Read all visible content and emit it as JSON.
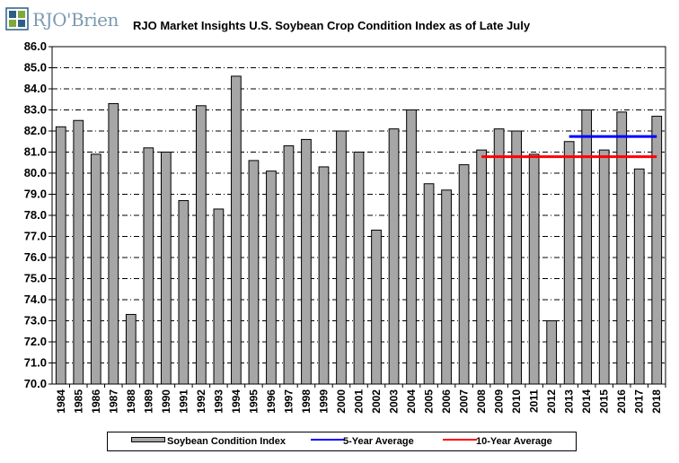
{
  "logo": {
    "text": "RJO'Brien"
  },
  "colors": {
    "bars": "#a6a6a6",
    "bar_stroke": "#000000",
    "five_year": "#0000ff",
    "ten_year": "#ff0000",
    "grid": "#000000"
  },
  "chart_data": {
    "type": "bar",
    "title": "RJO Market Insights U.S. Soybean Crop Condition Index as of Late July",
    "xlabel": "",
    "ylabel": "",
    "ylim": [
      70.0,
      86.0
    ],
    "ytick_step": 1.0,
    "yticks": [
      "70.0",
      "71.0",
      "72.0",
      "73.0",
      "74.0",
      "75.0",
      "76.0",
      "77.0",
      "78.0",
      "79.0",
      "80.0",
      "81.0",
      "82.0",
      "83.0",
      "84.0",
      "85.0",
      "86.0"
    ],
    "grid": "horizontal dash-dot",
    "categories": [
      "1984",
      "1985",
      "1986",
      "1987",
      "1988",
      "1989",
      "1990",
      "1991",
      "1992",
      "1993",
      "1994",
      "1995",
      "1996",
      "1997",
      "1998",
      "1999",
      "2000",
      "2001",
      "2002",
      "2003",
      "2004",
      "2005",
      "2006",
      "2007",
      "2008",
      "2009",
      "2010",
      "2011",
      "2012",
      "2013",
      "2014",
      "2015",
      "2016",
      "2017",
      "2018"
    ],
    "series": [
      {
        "name": "Soybean Condition Index",
        "kind": "bar",
        "values": [
          82.2,
          82.5,
          80.9,
          83.3,
          73.3,
          81.2,
          81.0,
          78.7,
          83.2,
          78.3,
          84.6,
          80.6,
          80.1,
          81.3,
          81.6,
          80.3,
          82.0,
          81.0,
          77.3,
          82.1,
          83.0,
          79.5,
          79.2,
          80.4,
          81.1,
          82.1,
          82.0,
          80.9,
          73.0,
          81.5,
          83.0,
          81.1,
          82.9,
          80.2,
          82.7
        ]
      },
      {
        "name": "5-Year Average",
        "kind": "line",
        "x": [
          "2013",
          "2018"
        ],
        "values": [
          81.74,
          81.74
        ]
      },
      {
        "name": "10-Year Average",
        "kind": "line",
        "x": [
          "2008",
          "2018"
        ],
        "values": [
          80.78,
          80.78
        ]
      }
    ],
    "legend_position": "bottom"
  }
}
